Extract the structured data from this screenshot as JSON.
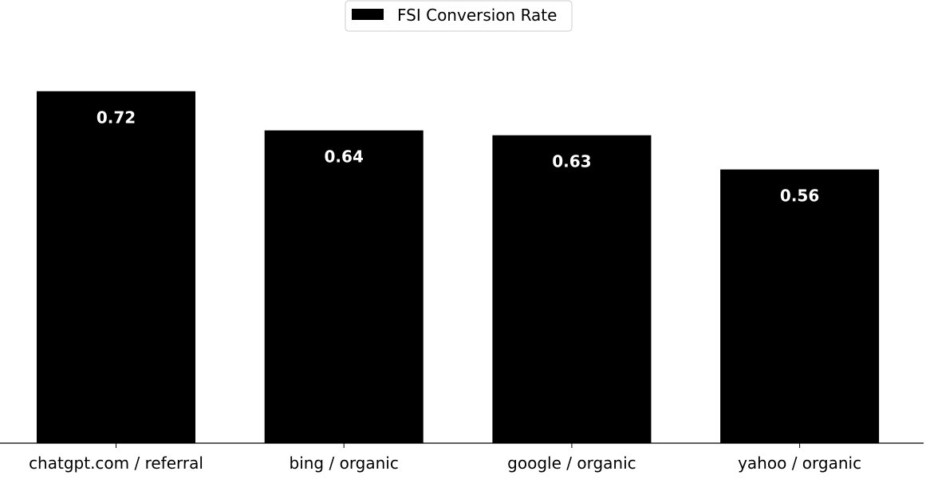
{
  "chart_data": {
    "type": "bar",
    "title": "",
    "xlabel": "",
    "ylabel": "",
    "categories": [
      "chatgpt.com / referral",
      "bing / organic",
      "google / organic",
      "yahoo / organic"
    ],
    "series": [
      {
        "name": "FSI Conversion Rate",
        "values": [
          0.72,
          0.64,
          0.63,
          0.56
        ],
        "data_labels": [
          "0.72",
          "0.64",
          "0.63",
          "0.56"
        ],
        "color": "#000000"
      }
    ],
    "ylim": [
      0,
      0.76
    ],
    "grid": false,
    "legend": {
      "position": "top-center",
      "entries": [
        "FSI Conversion Rate"
      ]
    },
    "colors": {
      "bar": "#000000",
      "data_label": "#ffffff",
      "axis": "#000000",
      "legend_border": "#cccccc"
    }
  }
}
